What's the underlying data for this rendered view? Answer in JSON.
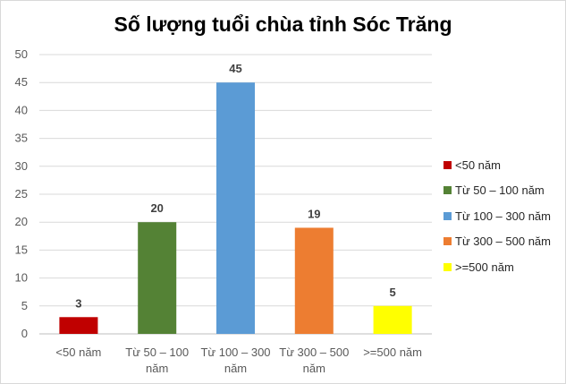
{
  "chart_data": {
    "type": "bar",
    "title": "Số lượng tuổi chùa tỉnh Sóc Trăng",
    "categories": [
      {
        "line1": "<50 năm",
        "line2": ""
      },
      {
        "line1": "Từ 50 – 100",
        "line2": "năm"
      },
      {
        "line1": "Từ 100 – 300",
        "line2": "năm"
      },
      {
        "line1": "Từ 300 – 500",
        "line2": "năm"
      },
      {
        "line1": ">=500 năm",
        "line2": ""
      }
    ],
    "values": [
      3,
      20,
      45,
      19,
      5
    ],
    "colors": [
      "#c00000",
      "#548235",
      "#5b9bd5",
      "#ed7d31",
      "#ffff00"
    ],
    "yticks": [
      "0",
      "5",
      "10",
      "15",
      "20",
      "25",
      "30",
      "35",
      "40",
      "45",
      "50"
    ],
    "ylim": [
      0,
      50
    ],
    "grid": true,
    "legend_position": "right",
    "legend": [
      "<50 năm",
      "Từ 50 – 100 năm",
      "Từ 100 – 300 năm",
      "Từ 300 – 500 năm",
      ">=500 năm"
    ]
  }
}
